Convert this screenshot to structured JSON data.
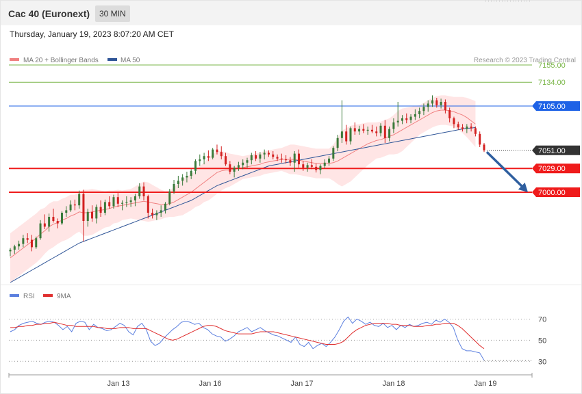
{
  "header": {
    "title": "Cac 40 (Euronext)",
    "timeframe": "30 MIN",
    "datetime": "Thursday, January 19, 2023 8:07:20 AM CET"
  },
  "legend": {
    "ma20_label": "MA 20 + Bollinger Bands",
    "ma50_label": "MA 50",
    "copyright": "Research © 2023 Trading Central",
    "rsi_label": "RSI",
    "ma9_label": "9MA"
  },
  "colors": {
    "ma20": "#f08080",
    "band_fill": "#ffdada",
    "ma50": "#2f5597",
    "bull": "#3a7a3a",
    "bear": "#d32020",
    "resistance_green": "#7ab648",
    "pivot_blue": "#1e62e6",
    "support_red": "#ef1b1b",
    "last_price": "#333333",
    "rsi": "#5b7fdf",
    "rsi_ma": "#e03030",
    "arrow": "#2f5f9f"
  },
  "chart_data": [
    {
      "type": "candlestick",
      "title": "",
      "x_labels": [
        "Jan 13",
        "Jan 16",
        "Jan 17",
        "Jan 18",
        "Jan 19"
      ],
      "ylim": [
        6890,
        7175
      ],
      "price_levels": [
        {
          "value": 7155.0,
          "label": "7155.00",
          "kind": "resistance"
        },
        {
          "value": 7134.0,
          "label": "7134.00",
          "kind": "resistance"
        },
        {
          "value": 7105.0,
          "label": "7105.00",
          "kind": "pivot"
        },
        {
          "value": 7051.0,
          "label": "7051.00",
          "kind": "last"
        },
        {
          "value": 7029.0,
          "label": "7029.00",
          "kind": "support"
        },
        {
          "value": 7000.0,
          "label": "7000.00",
          "kind": "support"
        }
      ],
      "arrow": {
        "from_price": 7049,
        "to_price": 7000,
        "direction": "down"
      },
      "candles": [
        [
          6928,
          6932,
          6922,
          6930
        ],
        [
          6930,
          6936,
          6925,
          6934
        ],
        [
          6934,
          6941,
          6930,
          6937
        ],
        [
          6937,
          6948,
          6933,
          6944
        ],
        [
          6944,
          6950,
          6938,
          6942
        ],
        [
          6942,
          6948,
          6928,
          6933
        ],
        [
          6933,
          6946,
          6931,
          6944
        ],
        [
          6944,
          6966,
          6942,
          6962
        ],
        [
          6962,
          6973,
          6955,
          6958
        ],
        [
          6958,
          6974,
          6952,
          6970
        ],
        [
          6970,
          6980,
          6963,
          6965
        ],
        [
          6965,
          6968,
          6956,
          6962
        ],
        [
          6962,
          6977,
          6960,
          6975
        ],
        [
          6975,
          6983,
          6970,
          6978
        ],
        [
          6978,
          6990,
          6976,
          6985
        ],
        [
          6985,
          6991,
          6978,
          6984
        ],
        [
          6984,
          7002,
          6980,
          6998
        ],
        [
          6998,
          7003,
          6940,
          6965
        ],
        [
          6965,
          6980,
          6958,
          6976
        ],
        [
          6976,
          6984,
          6964,
          6968
        ],
        [
          6968,
          6985,
          6962,
          6982
        ],
        [
          6982,
          6990,
          6970,
          6975
        ],
        [
          6975,
          6991,
          6972,
          6988
        ],
        [
          6988,
          6995,
          6980,
          6983
        ],
        [
          6983,
          6997,
          6980,
          6994
        ],
        [
          6994,
          6999,
          6982,
          6986
        ],
        [
          6986,
          6990,
          6978,
          6987
        ],
        [
          6987,
          6995,
          6982,
          6988
        ],
        [
          6988,
          6994,
          6982,
          6990
        ],
        [
          6990,
          6998,
          6983,
          6995
        ],
        [
          6995,
          7011,
          6992,
          7007
        ],
        [
          7007,
          7012,
          6990,
          6995
        ],
        [
          6995,
          6997,
          6968,
          6975
        ],
        [
          6975,
          6980,
          6968,
          6972
        ],
        [
          6972,
          6978,
          6966,
          6975
        ],
        [
          6975,
          6984,
          6970,
          6978
        ],
        [
          6978,
          6988,
          6974,
          6986
        ],
        [
          6986,
          7004,
          6984,
          7001
        ],
        [
          7001,
          7015,
          6998,
          7010
        ],
        [
          7010,
          7020,
          7005,
          7014
        ],
        [
          7014,
          7022,
          7008,
          7018
        ],
        [
          7018,
          7025,
          7012,
          7020
        ],
        [
          7020,
          7028,
          7016,
          7026
        ],
        [
          7026,
          7040,
          7022,
          7038
        ],
        [
          7038,
          7046,
          7032,
          7040
        ],
        [
          7040,
          7048,
          7034,
          7044
        ],
        [
          7044,
          7051,
          7038,
          7042
        ],
        [
          7042,
          7054,
          7040,
          7052
        ],
        [
          7052,
          7058,
          7046,
          7049
        ],
        [
          7049,
          7056,
          7040,
          7044
        ],
        [
          7044,
          7048,
          7032,
          7034
        ],
        [
          7034,
          7038,
          7022,
          7025
        ],
        [
          7025,
          7032,
          7018,
          7030
        ],
        [
          7030,
          7037,
          7026,
          7033
        ],
        [
          7033,
          7040,
          7028,
          7036
        ],
        [
          7036,
          7042,
          7030,
          7039
        ],
        [
          7039,
          7048,
          7034,
          7045
        ],
        [
          7045,
          7050,
          7038,
          7041
        ],
        [
          7041,
          7049,
          7036,
          7046
        ],
        [
          7046,
          7052,
          7040,
          7048
        ],
        [
          7048,
          7051,
          7043,
          7046
        ],
        [
          7046,
          7050,
          7040,
          7043
        ],
        [
          7043,
          7046,
          7038,
          7041
        ],
        [
          7041,
          7047,
          7036,
          7040
        ],
        [
          7040,
          7045,
          7035,
          7039
        ],
        [
          7039,
          7043,
          7032,
          7036
        ],
        [
          7036,
          7050,
          7025,
          7047
        ],
        [
          7047,
          7052,
          7030,
          7034
        ],
        [
          7034,
          7038,
          7026,
          7030
        ],
        [
          7030,
          7036,
          7025,
          7033
        ],
        [
          7033,
          7040,
          7028,
          7031
        ],
        [
          7031,
          7035,
          7024,
          7027
        ],
        [
          7027,
          7034,
          7022,
          7032
        ],
        [
          7032,
          7040,
          7029,
          7036
        ],
        [
          7036,
          7044,
          7032,
          7041
        ],
        [
          7041,
          7056,
          7038,
          7054
        ],
        [
          7054,
          7070,
          7050,
          7066
        ],
        [
          7066,
          7112,
          7060,
          7074
        ],
        [
          7074,
          7082,
          7058,
          7062
        ],
        [
          7062,
          7080,
          7058,
          7078
        ],
        [
          7078,
          7085,
          7070,
          7074
        ],
        [
          7074,
          7081,
          7070,
          7077
        ],
        [
          7077,
          7083,
          7072,
          7075
        ],
        [
          7075,
          7080,
          7070,
          7076
        ],
        [
          7076,
          7082,
          7072,
          7074
        ],
        [
          7074,
          7080,
          7068,
          7072
        ],
        [
          7072,
          7084,
          7068,
          7081
        ],
        [
          7081,
          7088,
          7060,
          7066
        ],
        [
          7066,
          7080,
          7062,
          7077
        ],
        [
          7077,
          7090,
          7072,
          7085
        ],
        [
          7085,
          7110,
          7080,
          7087
        ],
        [
          7087,
          7094,
          7083,
          7090
        ],
        [
          7090,
          7096,
          7084,
          7088
        ],
        [
          7088,
          7095,
          7084,
          7092
        ],
        [
          7092,
          7101,
          7088,
          7095
        ],
        [
          7095,
          7103,
          7090,
          7099
        ],
        [
          7099,
          7108,
          7094,
          7104
        ],
        [
          7104,
          7112,
          7098,
          7108
        ],
        [
          7108,
          7118,
          7104,
          7112
        ],
        [
          7112,
          7115,
          7103,
          7106
        ],
        [
          7106,
          7114,
          7102,
          7110
        ],
        [
          7110,
          7113,
          7096,
          7100
        ],
        [
          7100,
          7103,
          7085,
          7090
        ],
        [
          7090,
          7092,
          7078,
          7083
        ],
        [
          7083,
          7086,
          7076,
          7079
        ],
        [
          7079,
          7083,
          7074,
          7077
        ],
        [
          7077,
          7083,
          7072,
          7080
        ],
        [
          7080,
          7084,
          7074,
          7078
        ],
        [
          7078,
          7080,
          7068,
          7071
        ],
        [
          7071,
          7074,
          7055,
          7058
        ],
        [
          7058,
          7060,
          7049,
          7051
        ]
      ],
      "ma20": [
        6920,
        6924,
        6928,
        6932,
        6936,
        6940,
        6944,
        6949,
        6953,
        6958,
        6961,
        6963,
        6966,
        6968,
        6971,
        6973,
        6976,
        6975,
        6975,
        6976,
        6977,
        6978,
        6979,
        6980,
        6982,
        6983,
        6984,
        6985,
        6986,
        6987,
        6988,
        6989,
        6988,
        6987,
        6986,
        6985,
        6985,
        6986,
        6988,
        6991,
        6994,
        6997,
        7000,
        7004,
        7008,
        7012,
        7016,
        7020,
        7024,
        7026,
        7027,
        7027,
        7028,
        7029,
        7030,
        7031,
        7032,
        7033,
        7034,
        7036,
        7037,
        7038,
        7039,
        7040,
        7040,
        7040,
        7040,
        7039,
        7038,
        7037,
        7036,
        7035,
        7035,
        7035,
        7035,
        7036,
        7038,
        7041,
        7044,
        7047,
        7050,
        7053,
        7056,
        7059,
        7061,
        7063,
        7064,
        7066,
        7068,
        7070,
        7073,
        7076,
        7079,
        7082,
        7085,
        7088,
        7091,
        7094,
        7097,
        7099,
        7100,
        7100,
        7099,
        7098,
        7096,
        7094,
        7091,
        7087,
        7083
      ],
      "bb_width": [
        30,
        30,
        30,
        30,
        30,
        30,
        30,
        30,
        28,
        28,
        28,
        26,
        26,
        26,
        26,
        24,
        24,
        28,
        28,
        28,
        26,
        24,
        22,
        22,
        20,
        20,
        18,
        18,
        18,
        20,
        22,
        24,
        24,
        22,
        20,
        18,
        16,
        16,
        18,
        20,
        22,
        22,
        22,
        22,
        24,
        24,
        26,
        26,
        26,
        24,
        22,
        20,
        18,
        16,
        14,
        14,
        14,
        14,
        14,
        14,
        14,
        14,
        14,
        14,
        16,
        18,
        18,
        18,
        18,
        18,
        18,
        18,
        18,
        18,
        18,
        22,
        28,
        34,
        34,
        34,
        32,
        30,
        28,
        26,
        24,
        22,
        22,
        22,
        22,
        24,
        26,
        26,
        24,
        22,
        20,
        18,
        18,
        18,
        18,
        18,
        18,
        18,
        18,
        18,
        20,
        22,
        24,
        26,
        28
      ],
      "ma50": [
        6890,
        6893,
        6896,
        6899,
        6902,
        6905,
        6908,
        6911,
        6914,
        6917,
        6920,
        6923,
        6926,
        6929,
        6932,
        6935,
        6938,
        6940,
        6942,
        6944,
        6946,
        6948,
        6950,
        6952,
        6954,
        6956,
        6958,
        6960,
        6962,
        6964,
        6966,
        6968,
        6970,
        6972,
        6974,
        6976,
        6978,
        6980,
        6982,
        6984,
        6986,
        6988,
        6990,
        6993,
        6996,
        6999,
        7002,
        7005,
        7008,
        7010,
        7012,
        7014,
        7016,
        7018,
        7020,
        7022,
        7024,
        7026,
        7028,
        7030,
        7032,
        7033,
        7034,
        7035,
        7036,
        7037,
        7038,
        7039,
        7040,
        7041,
        7042,
        7043,
        7044,
        7045,
        7046,
        7047,
        7048,
        7049,
        7050,
        7051,
        7052,
        7053,
        7054,
        7055,
        7056,
        7057,
        7058,
        7059,
        7060,
        7061,
        7062,
        7063,
        7064,
        7065,
        7066,
        7067,
        7068,
        7069,
        7070,
        7071,
        7072,
        7073,
        7074,
        7075,
        7076,
        7077,
        7078,
        7078,
        7079
      ]
    },
    {
      "type": "line",
      "title": "",
      "ylim": [
        25,
        80
      ],
      "levels": [
        70,
        50,
        30
      ],
      "level_labels": [
        "70",
        "50",
        "30"
      ],
      "series": [
        {
          "name": "RSI",
          "values": [
            58,
            60,
            64,
            66,
            67,
            68,
            66,
            65,
            67,
            68,
            67,
            64,
            60,
            63,
            58,
            66,
            68,
            67,
            60,
            65,
            62,
            61,
            59,
            60,
            63,
            66,
            64,
            58,
            55,
            63,
            66,
            60,
            49,
            45,
            47,
            52,
            56,
            60,
            63,
            67,
            68,
            67,
            65,
            66,
            62,
            60,
            56,
            54,
            53,
            49,
            51,
            54,
            58,
            60,
            62,
            58,
            60,
            62,
            59,
            57,
            55,
            54,
            52,
            50,
            48,
            53,
            46,
            44,
            48,
            42,
            45,
            47,
            44,
            48,
            53,
            60,
            68,
            72,
            66,
            70,
            68,
            65,
            67,
            64,
            63,
            66,
            62,
            64,
            60,
            64,
            62,
            65,
            63,
            64,
            66,
            67,
            65,
            69,
            67,
            70,
            67,
            62,
            50,
            42,
            40,
            40,
            39,
            38,
            31
          ]
        },
        {
          "name": "9MA",
          "values": [
            62,
            62,
            63,
            63,
            64,
            64,
            65,
            65,
            66,
            66,
            67,
            66,
            65,
            64,
            64,
            63,
            63,
            63,
            63,
            63,
            62,
            62,
            61,
            61,
            61,
            62,
            62,
            62,
            61,
            61,
            61,
            61,
            59,
            57,
            55,
            53,
            51,
            50,
            51,
            53,
            55,
            57,
            59,
            61,
            63,
            64,
            64,
            63,
            61,
            59,
            58,
            57,
            56,
            56,
            56,
            56,
            57,
            58,
            58,
            58,
            58,
            57,
            56,
            55,
            54,
            53,
            52,
            51,
            50,
            49,
            48,
            47,
            46,
            46,
            46,
            47,
            49,
            53,
            57,
            60,
            62,
            64,
            65,
            66,
            66,
            66,
            66,
            65,
            65,
            64,
            64,
            64,
            63,
            63,
            63,
            64,
            64,
            65,
            65,
            66,
            66,
            66,
            64,
            61,
            57,
            53,
            49,
            45,
            42
          ]
        }
      ]
    }
  ]
}
